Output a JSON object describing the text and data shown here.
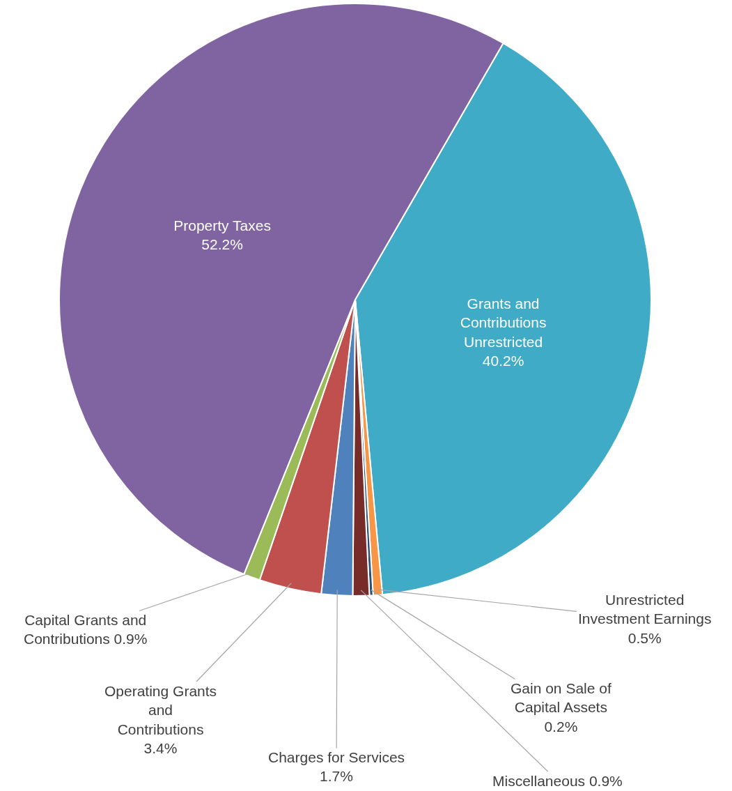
{
  "chart_data": {
    "type": "pie",
    "categories": [
      "Grants and Contributions Unrestricted",
      "Unrestricted Investment Earnings",
      "Gain on Sale of Capital Assets",
      "Miscellaneous",
      "Charges for Services",
      "Operating Grants and Contributions",
      "Capital Grants and Contributions",
      "Property Taxes"
    ],
    "values": [
      40.2,
      0.5,
      0.2,
      0.9,
      1.7,
      3.4,
      0.9,
      52.2
    ],
    "value_labels": [
      "40.2%",
      "0.5%",
      "0.2%",
      "0.9%",
      "1.7%",
      "3.4%",
      "0.9%",
      "52.2%"
    ],
    "colors": [
      "#3fabc6",
      "#f79646",
      "#2c4d75",
      "#772c2a",
      "#4f81bd",
      "#c0504d",
      "#9bbb59",
      "#8064a2"
    ],
    "legend": false
  }
}
